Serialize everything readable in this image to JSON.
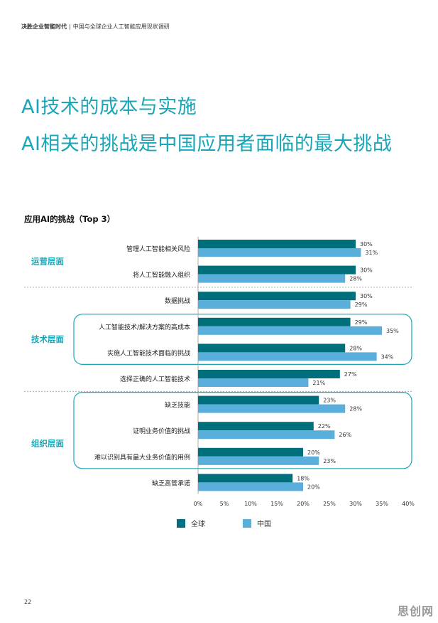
{
  "header": {
    "brand": "决胜企业智能时代",
    "separator": "|",
    "subtitle": "中国与全球企业人工智能应用现状调研"
  },
  "titles": {
    "line1": "AI技术的成本与实施",
    "line2": "AI相关的挑战是中国应用者面临的最大挑战"
  },
  "chart_heading": "应用AI的挑战（Top 3）",
  "page_number": "22",
  "watermark": "思创网",
  "colors": {
    "global": "#006f7c",
    "china": "#5aaedb",
    "accent": "#1aa6b7"
  },
  "chart_data": {
    "type": "bar",
    "orientation": "horizontal",
    "categories": [
      "管理人工智能相关风险",
      "将人工智能融入组织",
      "数据挑战",
      "人工智能技术/解决方案的高成本",
      "实施人工智能技术面临的挑战",
      "选择正确的人工智能技术",
      "缺乏技能",
      "证明业务价值的挑战",
      "难以识别具有最大业务价值的用例",
      "缺乏高管承诺"
    ],
    "series": [
      {
        "name": "全球",
        "values": [
          30,
          30,
          30,
          29,
          28,
          27,
          23,
          22,
          20,
          18
        ]
      },
      {
        "name": "中国",
        "values": [
          31,
          28,
          29,
          35,
          34,
          21,
          28,
          26,
          23,
          20
        ]
      }
    ],
    "groups": [
      {
        "label": "运营层面",
        "start": 0,
        "end": 1
      },
      {
        "label": "技术层面",
        "start": 2,
        "end": 5
      },
      {
        "label": "组织层面",
        "start": 6,
        "end": 9
      }
    ],
    "highlighted_categories": [
      [
        3,
        4
      ],
      [
        6,
        8
      ]
    ],
    "x_ticks": [
      "0%",
      "5%",
      "10%",
      "15%",
      "20%",
      "25%",
      "30%",
      "35%",
      "40%"
    ],
    "xlim": [
      0,
      40
    ],
    "value_suffix": "%",
    "legend_position": "bottom"
  }
}
